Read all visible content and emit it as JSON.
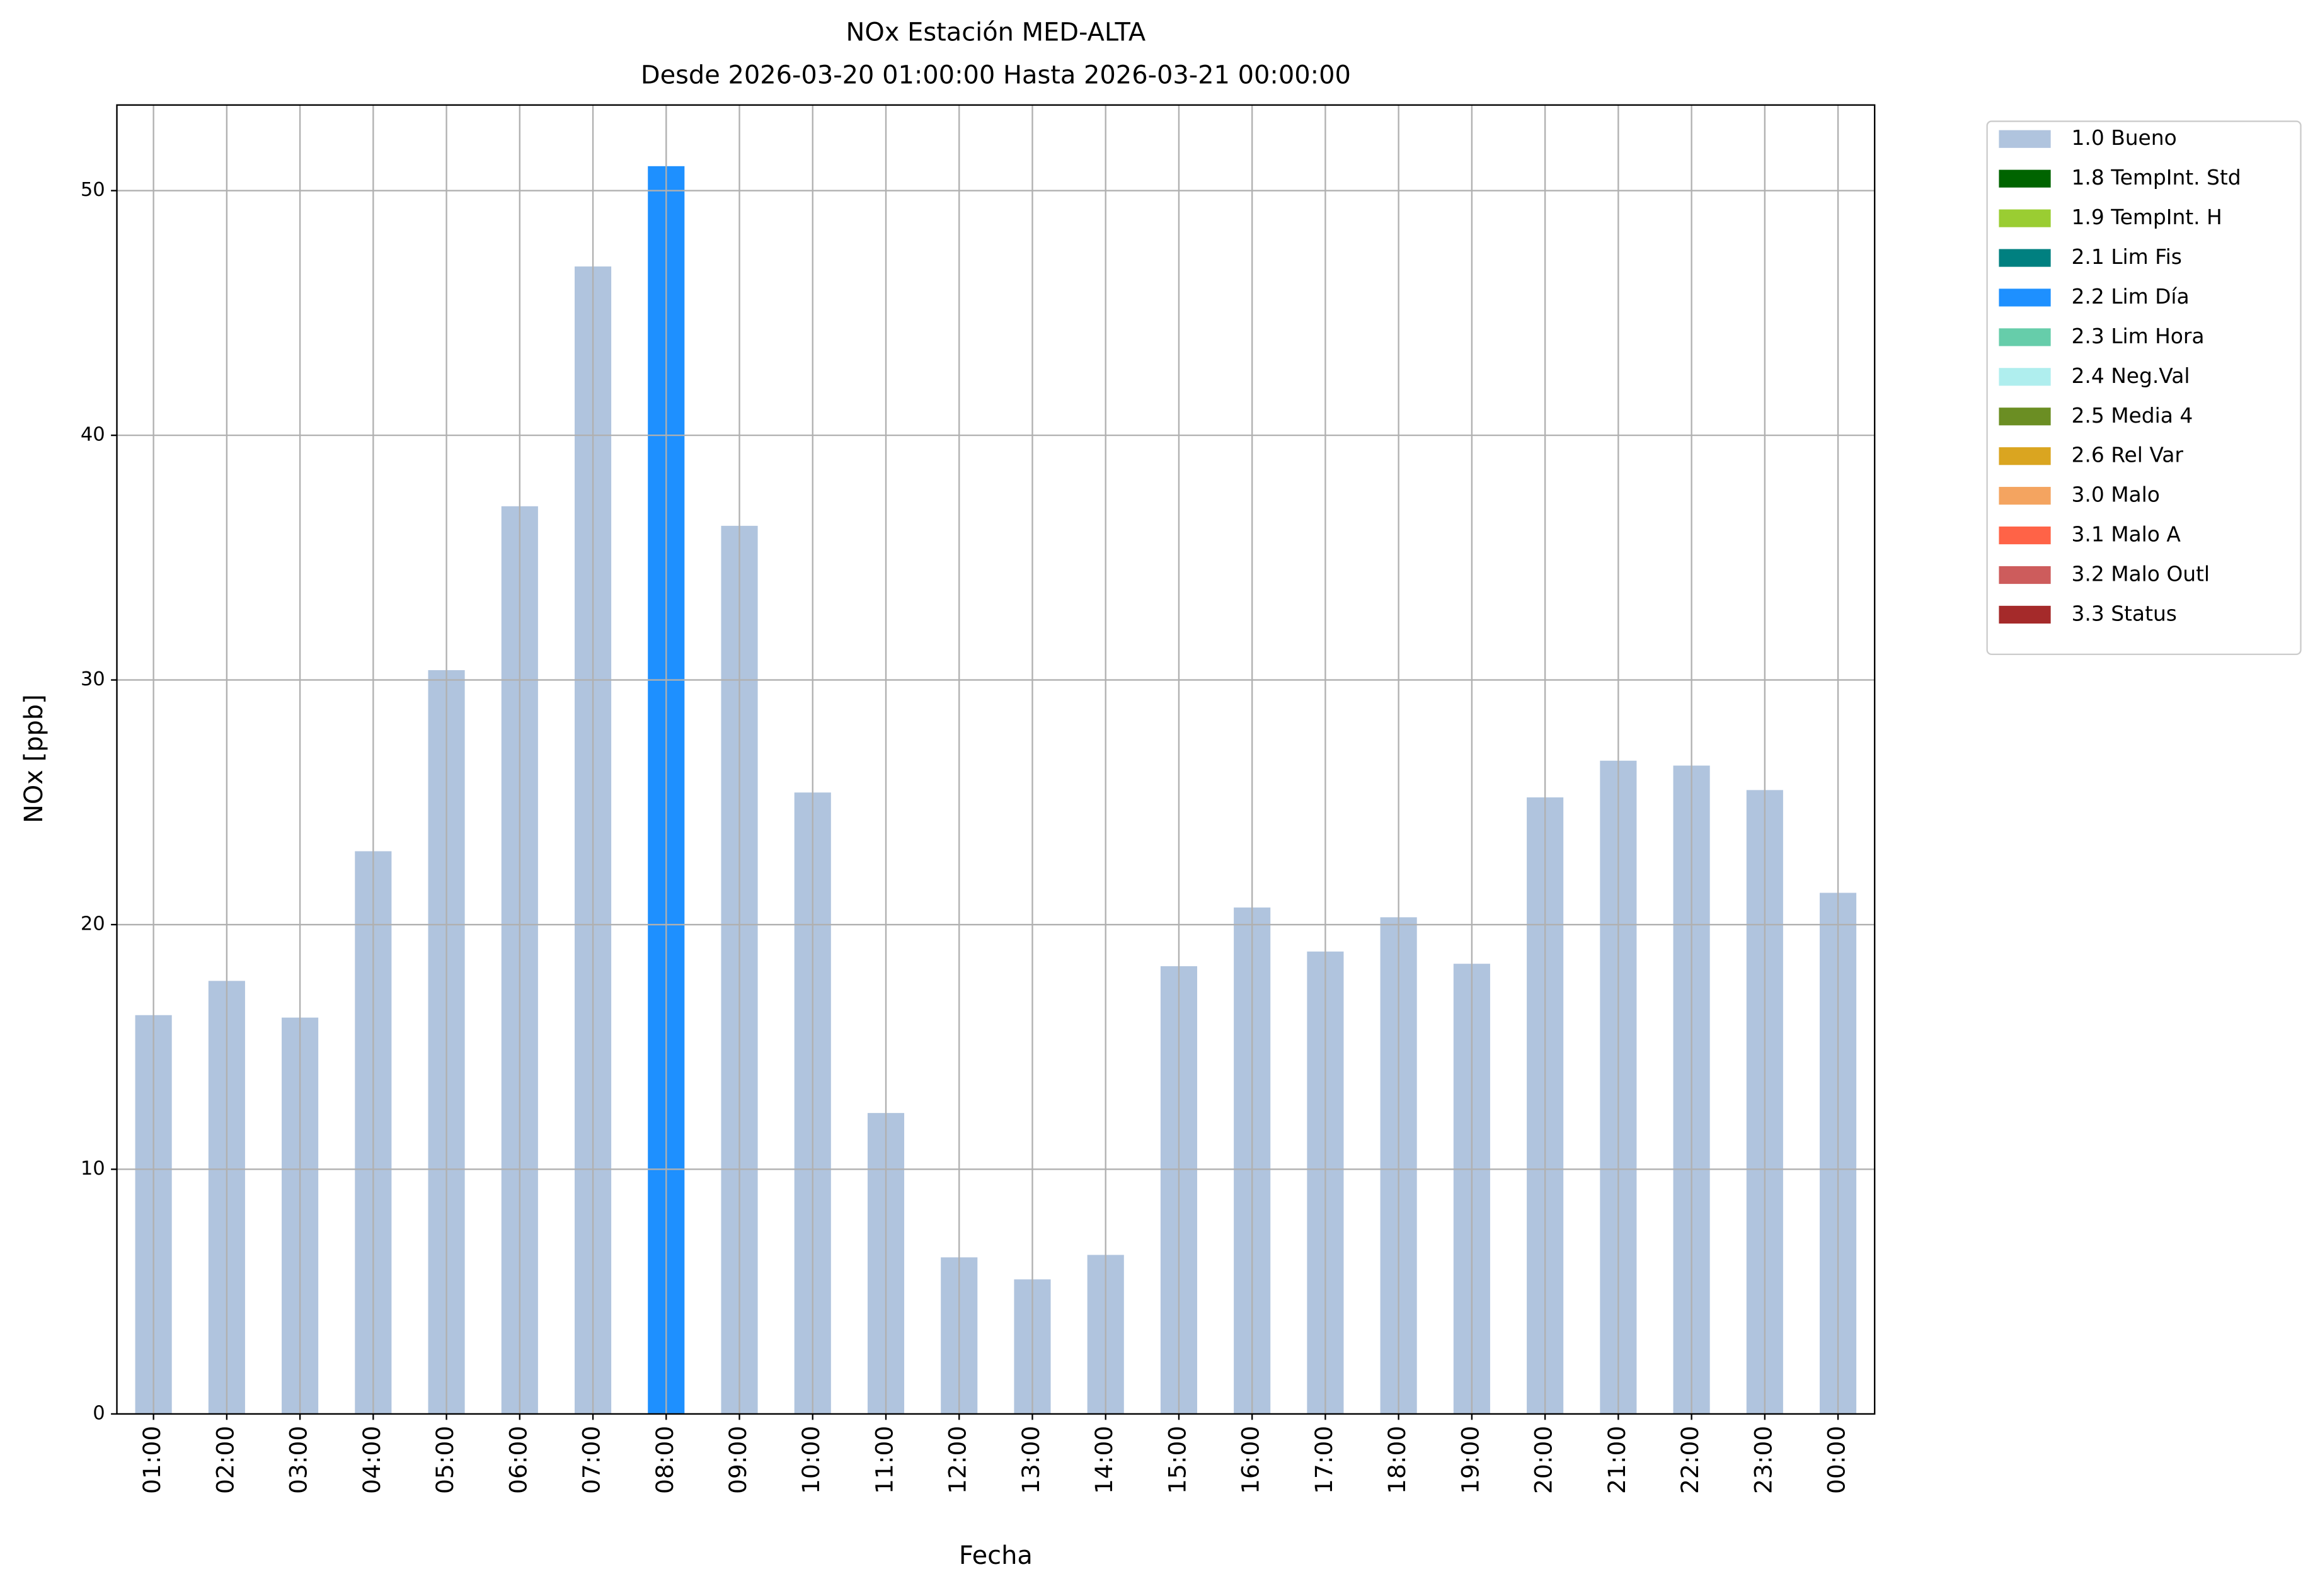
{
  "chart_data": {
    "type": "bar",
    "stacked": true,
    "title": "NOx Estación MED-ALTA",
    "subtitle": "Desde 2026-03-20 01:00:00 Hasta 2026-03-21 00:00:00",
    "x_label": "Fecha",
    "y_label": "NOx [ppb]",
    "categories": [
      "01:00",
      "02:00",
      "03:00",
      "04:00",
      "05:00",
      "06:00",
      "07:00",
      "08:00",
      "09:00",
      "10:00",
      "11:00",
      "12:00",
      "13:00",
      "14:00",
      "15:00",
      "16:00",
      "17:00",
      "18:00",
      "19:00",
      "20:00",
      "21:00",
      "22:00",
      "23:00",
      "00:00"
    ],
    "series": [
      {
        "name": "1.0 Bueno",
        "color": "#b0c4de",
        "values": [
          16.3,
          17.7,
          16.2,
          23.0,
          30.4,
          37.1,
          46.9,
          null,
          36.3,
          25.4,
          12.3,
          6.4,
          5.5,
          6.5,
          18.3,
          20.7,
          18.9,
          20.3,
          18.4,
          25.2,
          26.7,
          26.5,
          25.5,
          21.3
        ]
      },
      {
        "name": "1.8 TempInt. Std",
        "color": "#006400",
        "values": [
          null,
          null,
          null,
          null,
          null,
          null,
          null,
          null,
          null,
          null,
          null,
          null,
          null,
          null,
          null,
          null,
          null,
          null,
          null,
          null,
          null,
          null,
          null,
          null
        ]
      },
      {
        "name": "1.9 TempInt. H",
        "color": "#9acd32",
        "values": [
          null,
          null,
          null,
          null,
          null,
          null,
          null,
          null,
          null,
          null,
          null,
          null,
          null,
          null,
          null,
          null,
          null,
          null,
          null,
          null,
          null,
          null,
          null,
          null
        ]
      },
      {
        "name": "2.1 Lim Fis",
        "color": "#008080",
        "values": [
          null,
          null,
          null,
          null,
          null,
          null,
          null,
          null,
          null,
          null,
          null,
          null,
          null,
          null,
          null,
          null,
          null,
          null,
          null,
          null,
          null,
          null,
          null,
          null
        ]
      },
      {
        "name": "2.2 Lim Día",
        "color": "#1e90ff",
        "values": [
          null,
          null,
          null,
          null,
          null,
          null,
          null,
          51.0,
          null,
          null,
          null,
          null,
          null,
          null,
          null,
          null,
          null,
          null,
          null,
          null,
          null,
          null,
          null,
          null
        ]
      },
      {
        "name": "2.3 Lim Hora",
        "color": "#66cdaa",
        "values": [
          null,
          null,
          null,
          null,
          null,
          null,
          null,
          null,
          null,
          null,
          null,
          null,
          null,
          null,
          null,
          null,
          null,
          null,
          null,
          null,
          null,
          null,
          null,
          null
        ]
      },
      {
        "name": "2.4 Neg.Val",
        "color": "#afeeee",
        "values": [
          null,
          null,
          null,
          null,
          null,
          null,
          null,
          null,
          null,
          null,
          null,
          null,
          null,
          null,
          null,
          null,
          null,
          null,
          null,
          null,
          null,
          null,
          null,
          null
        ]
      },
      {
        "name": "2.5 Media 4",
        "color": "#6b8e23",
        "values": [
          null,
          null,
          null,
          null,
          null,
          null,
          null,
          null,
          null,
          null,
          null,
          null,
          null,
          null,
          null,
          null,
          null,
          null,
          null,
          null,
          null,
          null,
          null,
          null
        ]
      },
      {
        "name": "2.6 Rel Var",
        "color": "#daa520",
        "values": [
          null,
          null,
          null,
          null,
          null,
          null,
          null,
          null,
          null,
          null,
          null,
          null,
          null,
          null,
          null,
          null,
          null,
          null,
          null,
          null,
          null,
          null,
          null,
          null
        ]
      },
      {
        "name": "3.0 Malo",
        "color": "#f4a460",
        "values": [
          null,
          null,
          null,
          null,
          null,
          null,
          null,
          null,
          null,
          null,
          null,
          null,
          null,
          null,
          null,
          null,
          null,
          null,
          null,
          null,
          null,
          null,
          null,
          null
        ]
      },
      {
        "name": "3.1 Malo A",
        "color": "#ff6347",
        "values": [
          null,
          null,
          null,
          null,
          null,
          null,
          null,
          null,
          null,
          null,
          null,
          null,
          null,
          null,
          null,
          null,
          null,
          null,
          null,
          null,
          null,
          null,
          null,
          null
        ]
      },
      {
        "name": "3.2 Malo Outl",
        "color": "#cd5c5c",
        "values": [
          null,
          null,
          null,
          null,
          null,
          null,
          null,
          null,
          null,
          null,
          null,
          null,
          null,
          null,
          null,
          null,
          null,
          null,
          null,
          null,
          null,
          null,
          null,
          null
        ]
      },
      {
        "name": "3.3 Status",
        "color": "#a52a2a",
        "values": [
          null,
          null,
          null,
          null,
          null,
          null,
          null,
          null,
          null,
          null,
          null,
          null,
          null,
          null,
          null,
          null,
          null,
          null,
          null,
          null,
          null,
          null,
          null,
          null
        ]
      }
    ],
    "ylim": [
      0,
      53.5
    ],
    "yticks": [
      0,
      10,
      20,
      30,
      40,
      50
    ],
    "grid": true,
    "legend": "outside-right"
  }
}
